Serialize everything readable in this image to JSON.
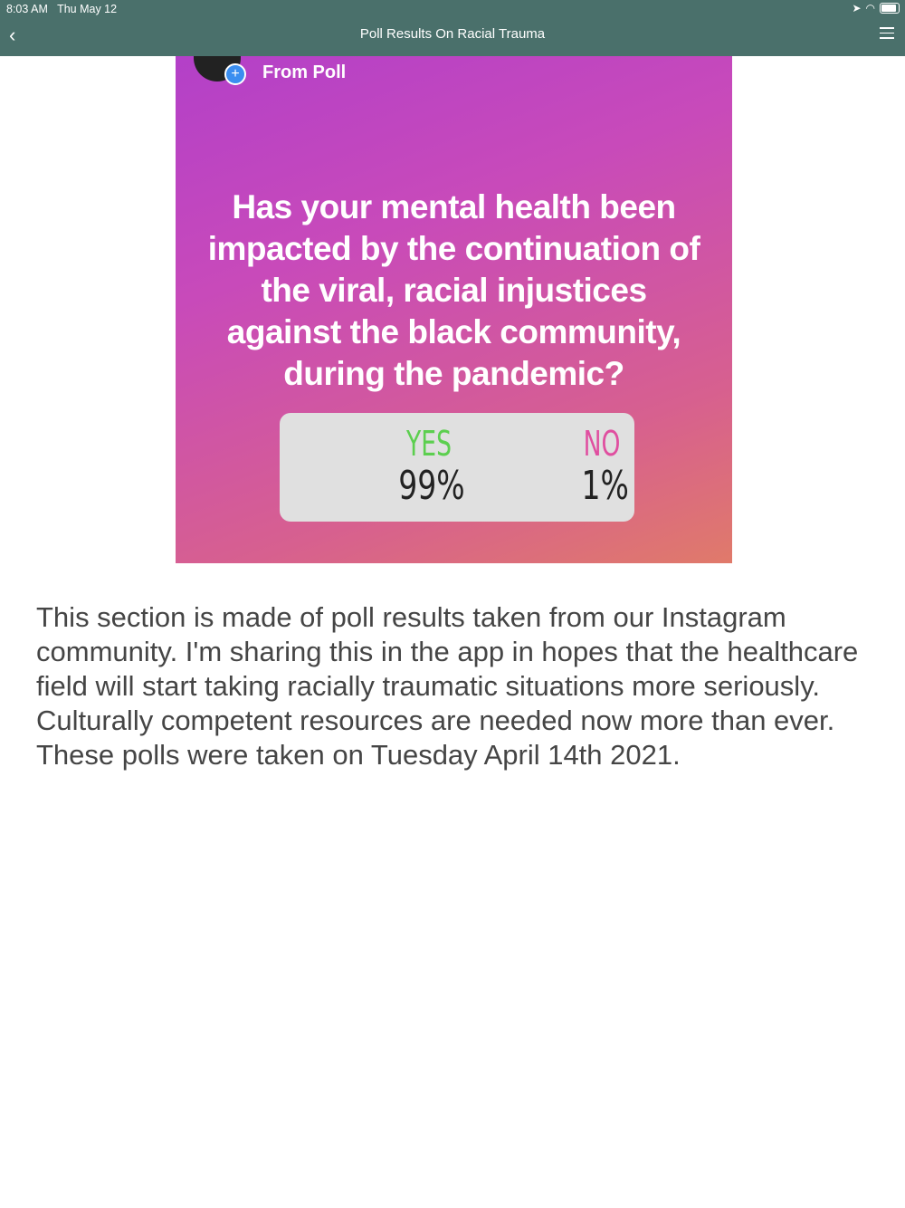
{
  "status_bar": {
    "time": "8:03 AM",
    "date": "Thu May 12"
  },
  "nav": {
    "title": "Poll Results On Racial Trauma",
    "back_icon": "chevron-left-icon",
    "menu_icon": "hamburger-icon"
  },
  "story": {
    "from_label": "From Poll",
    "question": "Has your mental health been impacted by the continuation of the viral, racial injustices against the black community, during the pandemic?",
    "options": [
      {
        "label": "YES",
        "percent": "99%",
        "color": "#5ccf4f"
      },
      {
        "label": "NO",
        "percent": "1%",
        "color": "#e04fa0"
      }
    ]
  },
  "description": "This section is made of poll results taken from our Instagram community. I'm sharing this in the app in hopes that the healthcare field will start taking racially traumatic situations more seriously. Culturally competent resources are needed now more than ever. These polls were taken on Tuesday April 14th 2021."
}
